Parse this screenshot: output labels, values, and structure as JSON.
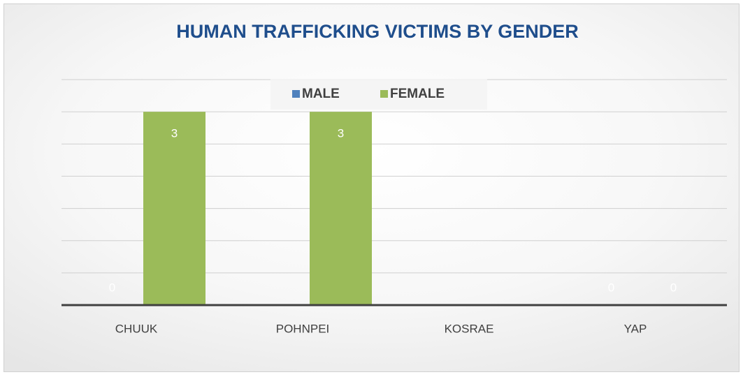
{
  "chart_data": {
    "type": "grouped_bar",
    "title": "HUMAN TRAFFICKING VICTIMS BY GENDER",
    "categories": [
      "CHUUK",
      "POHNPEI",
      "KOSRAE",
      "YAP"
    ],
    "series": [
      {
        "name": "MALE",
        "color": "#4f81bd",
        "values": [
          0,
          null,
          null,
          0
        ]
      },
      {
        "name": "FEMALE",
        "color": "#9bbb59",
        "values": [
          3,
          3,
          null,
          0
        ]
      }
    ],
    "ylim": [
      0,
      3.5
    ],
    "yticks": [
      0,
      0.5,
      1,
      1.5,
      2,
      2.5,
      3,
      3.5
    ],
    "grid": true,
    "legend": "top"
  }
}
